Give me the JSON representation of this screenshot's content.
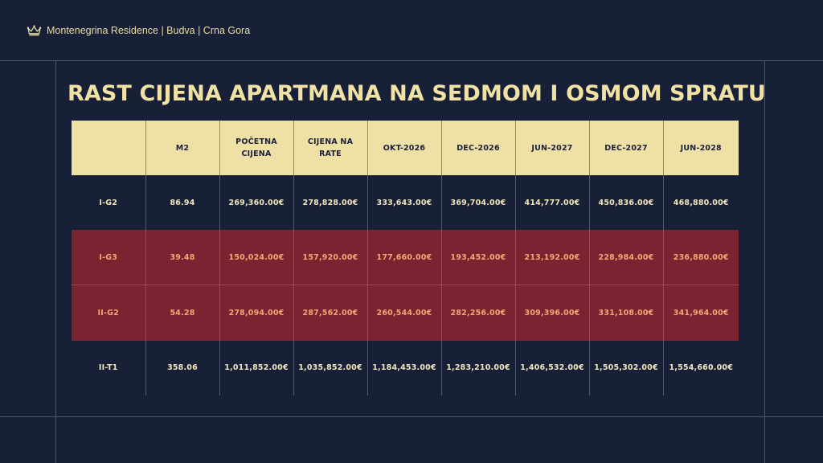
{
  "header": {
    "brand_text": "Montenegrina Residence | Budva | Crna Gora",
    "logo_icon": "crown-icon"
  },
  "title": "RAST CIJENA APARTMANA NA SEDMOM I OSMOM SPRATU",
  "colors": {
    "background": "#172036",
    "header_fill": "#efe0a6",
    "highlight_row": "#7a2331",
    "highlight_text": "#f2a872",
    "title_text": "#f0e2a4"
  },
  "table": {
    "headers": [
      "",
      "M2",
      "POČETNA CIJENA",
      "CIJENA NA RATE",
      "OKT-2026",
      "DEC-2026",
      "JUN-2027",
      "DEC-2027",
      "JUN-2028"
    ],
    "rows": [
      [
        "I-G2",
        "86.94",
        "269,360.00€",
        "278,828.00€",
        "333,643.00€",
        "369,704.00€",
        "414,777.00€",
        "450,836.00€",
        "468,880.00€"
      ],
      [
        "I-G3",
        "39.48",
        "150,024.00€",
        "157,920.00€",
        "177,660.00€",
        "193,452.00€",
        "213,192.00€",
        "228,984.00€",
        "236,880.00€"
      ],
      [
        "II-G2",
        "54.28",
        "278,094.00€",
        "287,562.00€",
        "260,544.00€",
        "282,256.00€",
        "309,396.00€",
        "331,108.00€",
        "341,964.00€"
      ],
      [
        "II-T1",
        "358.06",
        "1,011,852.00€",
        "1,035,852.00€",
        "1,184,453.00€",
        "1,283,210.00€",
        "1,406,532.00€",
        "1,505,302.00€",
        "1,554,660.00€"
      ]
    ],
    "highlighted_rows": [
      "I-G3",
      "II-G2"
    ]
  }
}
